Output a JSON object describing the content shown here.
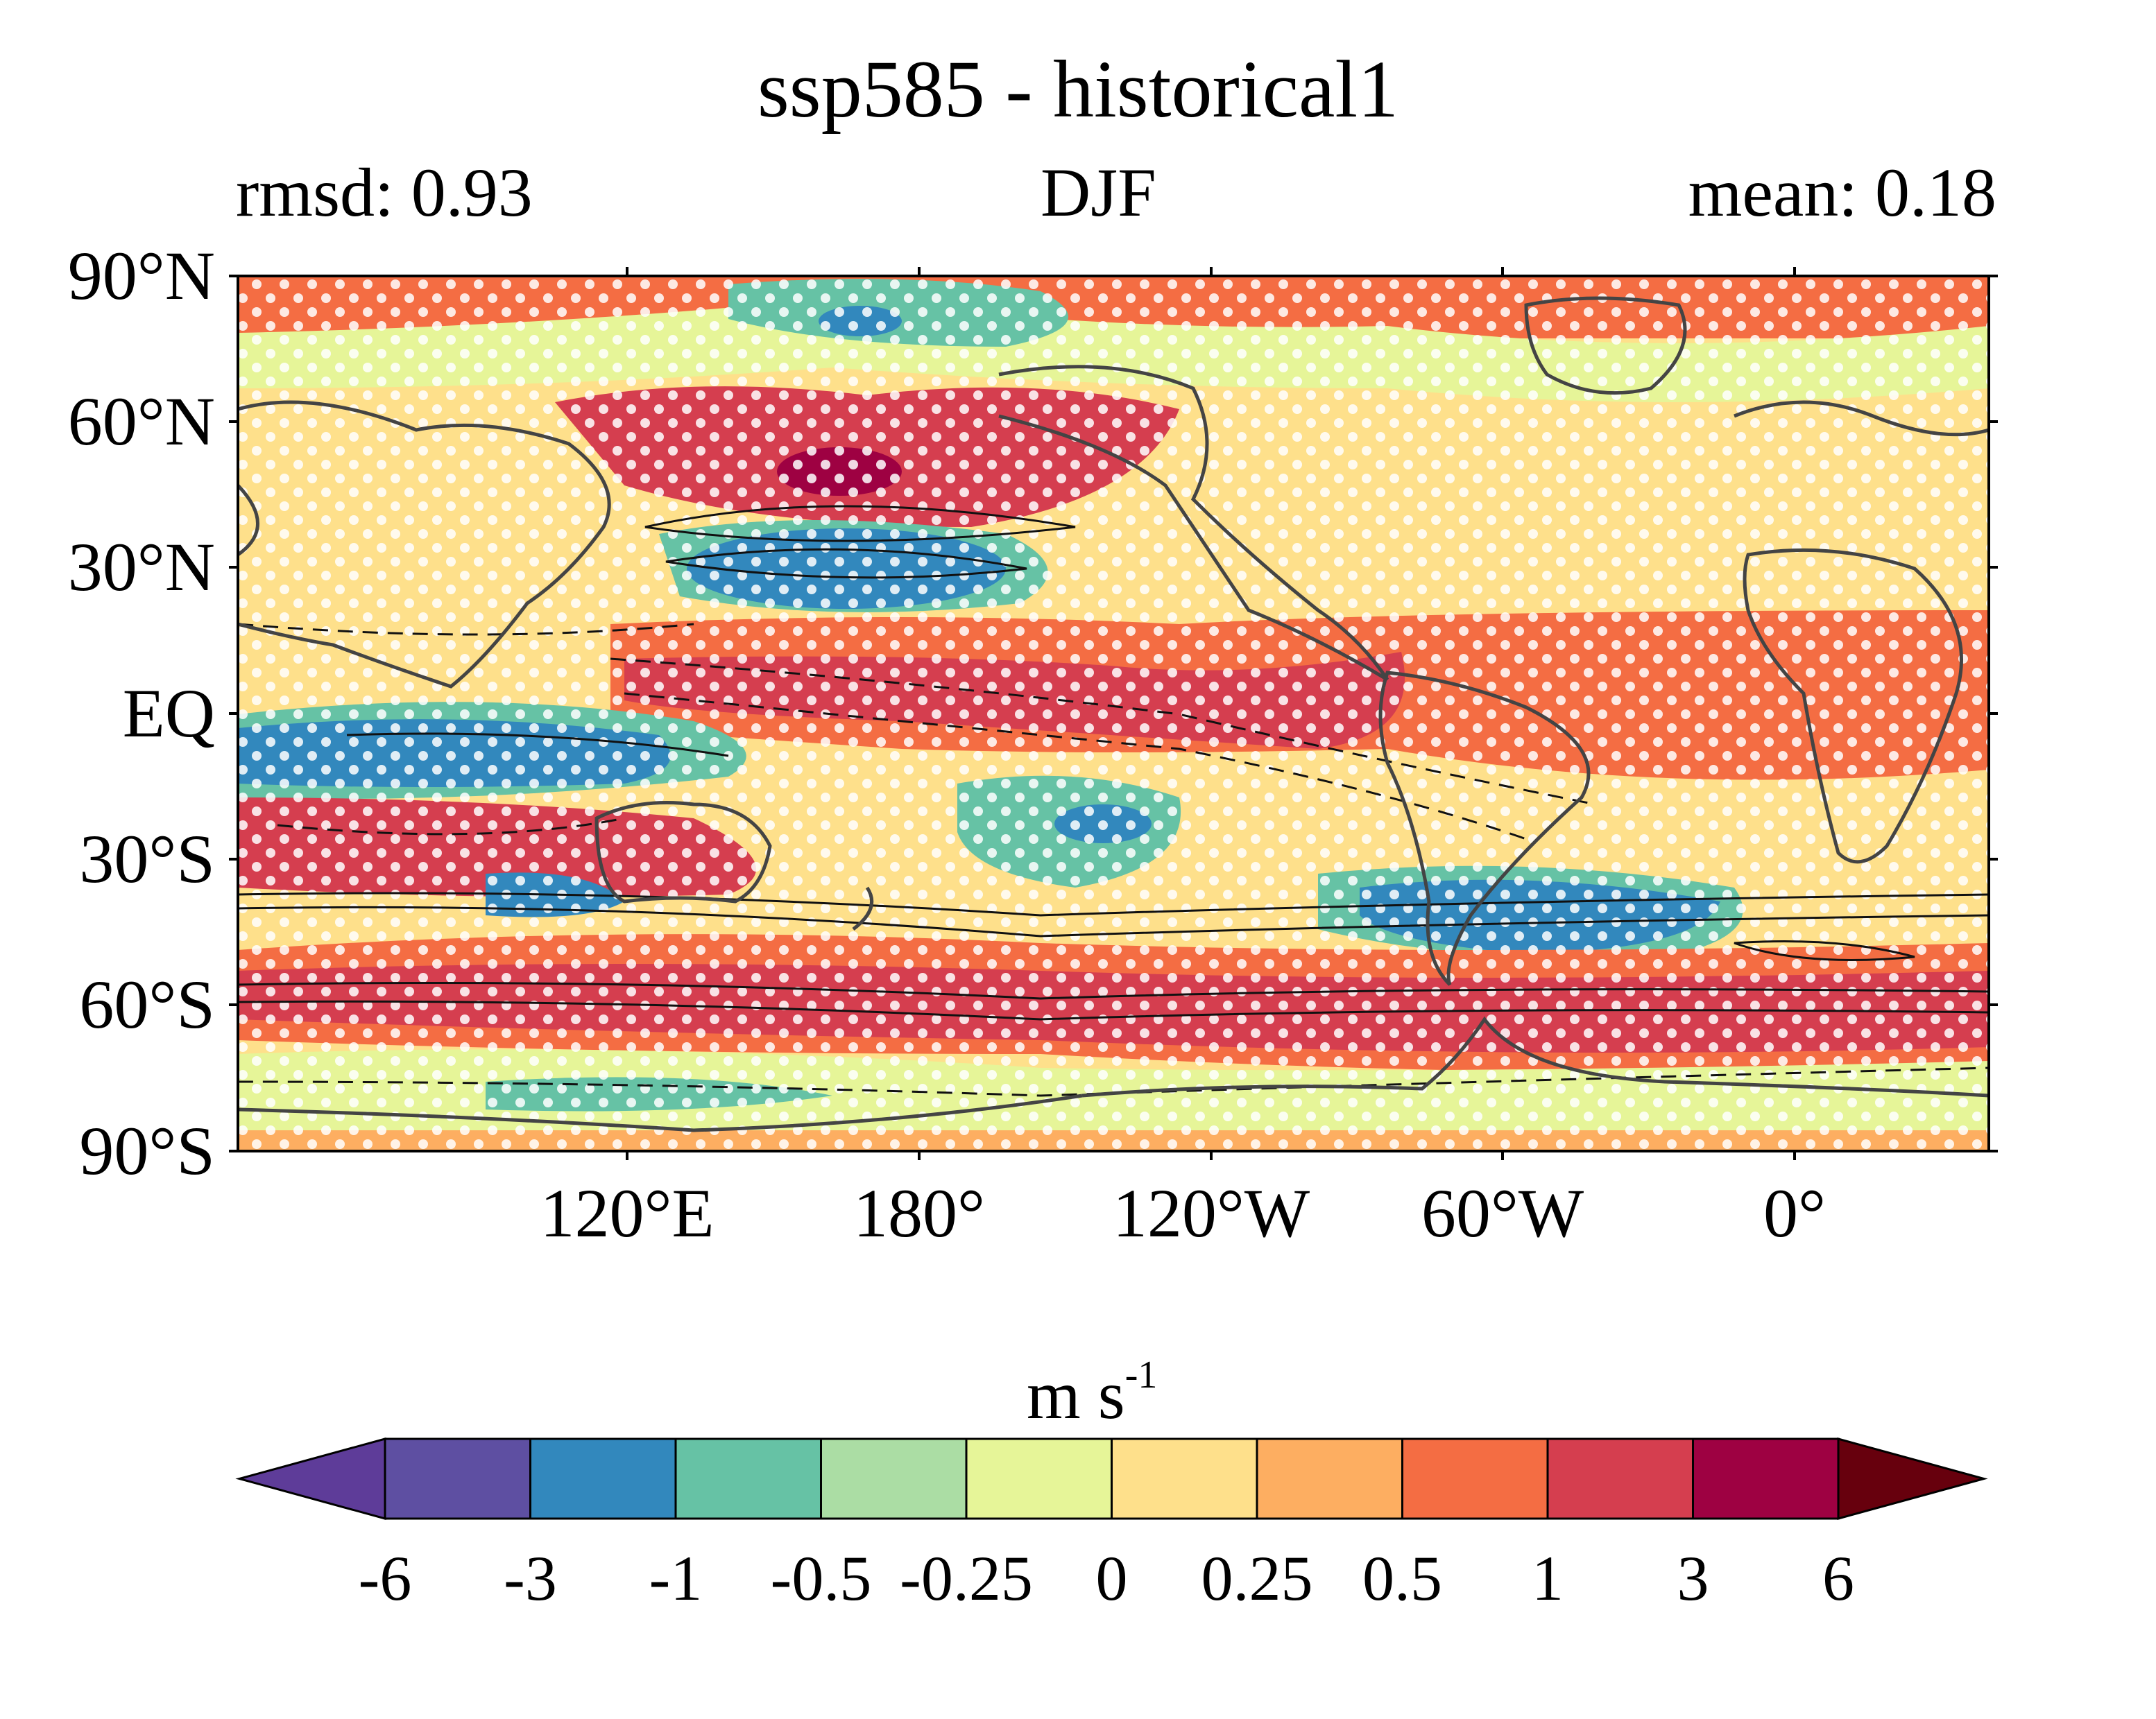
{
  "title": "ssp585 - historical1",
  "subtitle_left": "rmsd: 0.93",
  "subtitle_center": "DJF",
  "subtitle_right": "mean: 0.18",
  "lat_labels": [
    "90°N",
    "60°N",
    "30°N",
    "EQ",
    "30°S",
    "60°S",
    "90°S"
  ],
  "lon_labels": [
    "120°E",
    "180°",
    "120°W",
    "60°W",
    "0°"
  ],
  "colorbar": {
    "unit_base": "m s",
    "unit_exp": "-1",
    "levels": [
      "-6",
      "-3",
      "-1",
      "-0.5",
      "-0.25",
      "0",
      "0.25",
      "0.5",
      "1",
      "3",
      "6"
    ],
    "colors": [
      "#5e3c99",
      "#5e4fa2",
      "#3288bd",
      "#66c2a5",
      "#abdda4",
      "#e6f598",
      "#fee08b",
      "#fdae61",
      "#f46d43",
      "#d53e4f",
      "#9e0142",
      "#67000d"
    ]
  },
  "chart_data": {
    "type": "heatmap",
    "title": "ssp585 - historical1",
    "season": "DJF",
    "rmsd": 0.93,
    "mean": 0.18,
    "unit": "m s-1",
    "projection": "PlateCarree, central longitude 150°E (lon 60°E to 420°E)",
    "x_ticks": [
      "120°E",
      "180°",
      "120°W",
      "60°W",
      "0°"
    ],
    "y_ticks": [
      "90°N",
      "60°N",
      "30°N",
      "EQ",
      "30°S",
      "60°S",
      "90°S"
    ],
    "color_levels": [
      -6,
      -3,
      -1,
      -0.5,
      -0.25,
      0,
      0.25,
      0.5,
      1,
      3,
      6
    ],
    "colorbar_extend": "both",
    "overlays": [
      "coastlines",
      "climatology contours (solid positive, dashed negative)",
      "stippling for significance"
    ],
    "anomaly_features": [
      {
        "region": "North Pacific 35-50N",
        "sign": "positive",
        "level": 3
      },
      {
        "region": "Subtropical North Pacific ~30N",
        "sign": "negative",
        "level": -1
      },
      {
        "region": "Southern Ocean 55-65S",
        "sign": "positive",
        "level": 1
      },
      {
        "region": "Indian Ocean 5-15S",
        "sign": "negative",
        "level": -1
      },
      {
        "region": "South Atlantic ~45S",
        "sign": "negative",
        "level": -1
      },
      {
        "region": "Tropical Pacific / Atlantic 0-20N",
        "sign": "positive",
        "level": 1
      }
    ]
  }
}
